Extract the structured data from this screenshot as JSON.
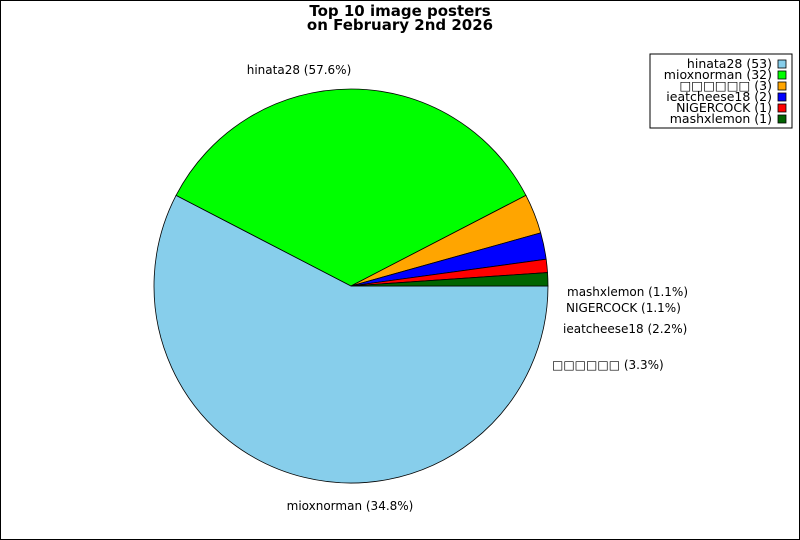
{
  "chart_data": {
    "type": "pie",
    "title": "Top 10 image posters",
    "subtitle": "on February 2nd 2026",
    "slices": [
      {
        "label": "hinata28",
        "value": 53,
        "percent_label": "hinata28 (57.6%)",
        "legend_label": "hinata28 (53)",
        "color": "#87CEEB"
      },
      {
        "label": "mioxnorman",
        "value": 32,
        "percent_label": "mioxnorman (34.8%)",
        "legend_label": "mioxnorman (32)",
        "color": "#00FF00"
      },
      {
        "label": "□□□□□□",
        "value": 3,
        "percent_label": "□□□□□□ (3.3%)",
        "legend_label": "□□□□□□ (3)",
        "color": "#FFA500"
      },
      {
        "label": "ieatcheese18",
        "value": 2,
        "percent_label": "ieatcheese18 (2.2%)",
        "legend_label": "ieatcheese18 (2)",
        "color": "#0000FF"
      },
      {
        "label": "NIGERCOCK",
        "value": 1,
        "percent_label": "NIGERCOCK (1.1%)",
        "legend_label": "NIGERCOCK (1)",
        "color": "#FF0000"
      },
      {
        "label": "mashxlemon",
        "value": 1,
        "percent_label": "mashxlemon (1.1%)",
        "legend_label": "mashxlemon (1)",
        "color": "#006400"
      }
    ],
    "start_direction": "east",
    "rotation": "clockwise",
    "legend_position": "top-right"
  }
}
